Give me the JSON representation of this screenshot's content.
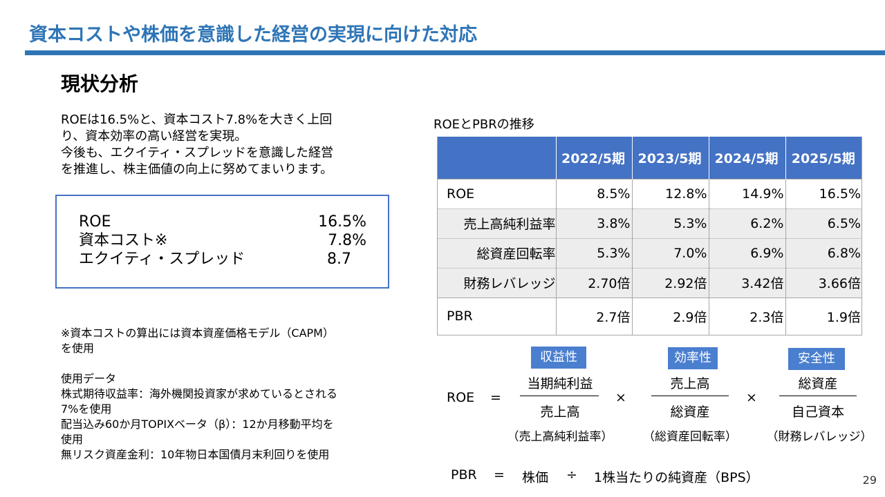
{
  "header": {
    "title": "資本コストや株価を意識した経営の実現に向けた対応",
    "subheading": "現状分析"
  },
  "intro": {
    "lines": [
      "ROEは16.5%と、資本コスト7.8%を大きく上回",
      "り、資本効率の高い経営を実現。",
      "今後も、エクイティ・スプレッドを意識した経営",
      "を推進し、株主価値の向上に努めてまいります。"
    ]
  },
  "metrics": [
    {
      "label": "ROE",
      "value": "16.5%"
    },
    {
      "label": "資本コスト※",
      "value": "7.8%"
    },
    {
      "label": "エクイティ・スプレッド",
      "value": "8.7 "
    }
  ],
  "notes": {
    "lines": [
      "※資本コストの算出には資本資産価格モデル（CAPM）",
      "を使用",
      "",
      "使用データ",
      "株式期待収益率：海外機関投資家が求めているとされる",
      "7%を使用",
      "配当込み60か月TOPIXベータ（β）：12か月移動平均を",
      "使用",
      "無リスク資産金利：10年物日本国債月末利回りを使用"
    ]
  },
  "table": {
    "caption": "ROEとPBRの推移",
    "columns": [
      "2022/5期",
      "2023/5期",
      "2024/5期",
      "2025/5期"
    ],
    "rows": [
      {
        "label": "ROE",
        "values": [
          "8.5%",
          "12.8%",
          "14.9%",
          "16.5%"
        ],
        "kind": "main"
      },
      {
        "label": "売上高純利益率",
        "values": [
          "3.8%",
          "5.3%",
          "6.2%",
          "6.5%"
        ],
        "kind": "sub"
      },
      {
        "label": "総資産回転率",
        "values": [
          "5.3%",
          "7.0%",
          "6.9%",
          "6.8%"
        ],
        "kind": "sub"
      },
      {
        "label": "財務レバレッジ",
        "values": [
          "2.70倍",
          "2.92倍",
          "3.42倍",
          "3.66倍"
        ],
        "kind": "sub"
      },
      {
        "label": "PBR",
        "values": [
          "2.7倍",
          "2.9倍",
          "2.3倍",
          "1.9倍"
        ],
        "kind": "pbr"
      }
    ]
  },
  "formula": {
    "roe_label": "ROE",
    "equals": "=",
    "times": "×",
    "terms": [
      {
        "tag": "収益性",
        "numerator": "当期純利益",
        "denominator": "売上高",
        "name": "（売上高純利益率）"
      },
      {
        "tag": "効率性",
        "numerator": "売上高",
        "denominator": "総資産",
        "name": "（総資産回転率）"
      },
      {
        "tag": "安全性",
        "numerator": "総資産",
        "denominator": "自己資本",
        "name": "（財務レバレッジ）"
      }
    ],
    "pbr_label": "PBR",
    "pbr_price": "株価",
    "divide": "÷",
    "pbr_bps": "1株当たりの純資産（BPS）"
  },
  "footer": {
    "page_number": "29"
  },
  "colors": {
    "accent": "#2e75b6",
    "table_header": "#4472c4",
    "tag": "#4a7fcf",
    "sub_row": "#ededed"
  }
}
